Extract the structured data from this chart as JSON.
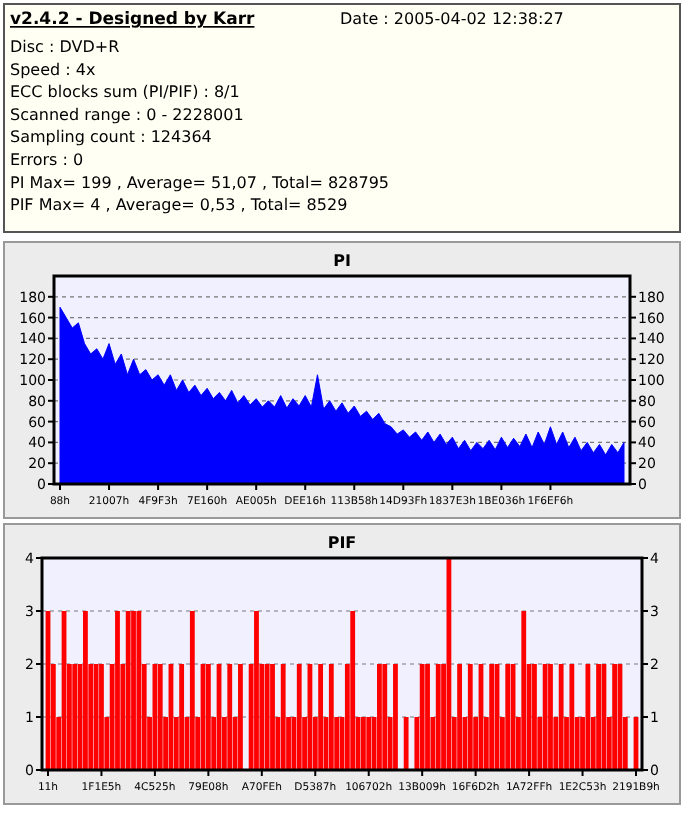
{
  "chart_data": [
    {
      "type": "other",
      "title": "v2.4.2 - Designed by Karr",
      "annotations": [
        "Date : 2005-04-02 12:38:27",
        "Disc : DVD+R",
        "Speed : 4x",
        "ECC blocks sum (PI/PIF) : 8/1",
        "Scanned range : 0 - 2228001",
        "Sampling count : 124364",
        "Errors : 0",
        "PI Max= 199 , Average= 51,07 , Total= 828795",
        "PIF Max= 4 , Average= 0,53 , Total= 8529"
      ]
    },
    {
      "type": "area",
      "title": "PI",
      "color": "#0000ff",
      "grid": "y",
      "categories": [
        "88h",
        null,
        null,
        null,
        null,
        null,
        null,
        null,
        "21007h",
        null,
        null,
        null,
        null,
        null,
        null,
        null,
        "4F9F3h",
        null,
        null,
        null,
        null,
        null,
        null,
        null,
        "7E160h",
        null,
        null,
        null,
        null,
        null,
        null,
        null,
        "AE005h",
        null,
        null,
        null,
        null,
        null,
        null,
        null,
        "DEE16h",
        null,
        null,
        null,
        null,
        null,
        null,
        null,
        "113B58h",
        null,
        null,
        null,
        null,
        null,
        null,
        null,
        "14D93Fh",
        null,
        null,
        null,
        null,
        null,
        null,
        null,
        "1837E3h",
        null,
        null,
        null,
        null,
        null,
        null,
        null,
        "1BE036h",
        null,
        null,
        null,
        null,
        null,
        null,
        null,
        "1F6EF6h",
        null,
        null,
        null,
        null,
        null,
        null,
        null,
        null,
        null,
        null,
        null,
        null
      ],
      "values": [
        170,
        160,
        150,
        155,
        135,
        125,
        130,
        120,
        135,
        115,
        125,
        105,
        120,
        105,
        110,
        100,
        105,
        95,
        105,
        90,
        100,
        88,
        95,
        85,
        92,
        82,
        88,
        80,
        90,
        78,
        85,
        76,
        82,
        74,
        80,
        74,
        85,
        73,
        82,
        75,
        85,
        74,
        105,
        72,
        80,
        70,
        78,
        68,
        75,
        65,
        70,
        62,
        68,
        58,
        55,
        48,
        52,
        45,
        50,
        42,
        50,
        40,
        48,
        38,
        45,
        34,
        42,
        32,
        40,
        34,
        42,
        33,
        45,
        35,
        44,
        36,
        48,
        35,
        50,
        38,
        55,
        38,
        50,
        35,
        45,
        32,
        40,
        30,
        38,
        28,
        38,
        30,
        40
      ],
      "ylim": [
        0,
        200
      ],
      "yticks": [
        0,
        20,
        40,
        60,
        80,
        100,
        120,
        140,
        160,
        180
      ],
      "y2lim": [
        0,
        200
      ],
      "y2ticks": [
        0,
        20,
        40,
        60,
        80,
        100,
        120,
        140,
        160,
        180
      ]
    },
    {
      "type": "bar",
      "title": "PIF",
      "color": "#ff0000",
      "grid": "y",
      "categories": [
        "11h",
        null,
        null,
        null,
        null,
        null,
        null,
        null,
        null,
        null,
        "1F1E5h",
        null,
        null,
        null,
        null,
        null,
        null,
        null,
        null,
        null,
        "4C525h",
        null,
        null,
        null,
        null,
        null,
        null,
        null,
        null,
        null,
        "79E08h",
        null,
        null,
        null,
        null,
        null,
        null,
        null,
        null,
        null,
        "A70FEh",
        null,
        null,
        null,
        null,
        null,
        null,
        null,
        null,
        null,
        "D5387h",
        null,
        null,
        null,
        null,
        null,
        null,
        null,
        null,
        null,
        "106702h",
        null,
        null,
        null,
        null,
        null,
        null,
        null,
        null,
        null,
        "13B009h",
        null,
        null,
        null,
        null,
        null,
        null,
        null,
        null,
        null,
        "16F6D2h",
        null,
        null,
        null,
        null,
        null,
        null,
        null,
        null,
        null,
        "1A72FFh",
        null,
        null,
        null,
        null,
        null,
        null,
        null,
        null,
        null,
        "1E2C53h",
        null,
        null,
        null,
        null,
        null,
        null,
        null,
        null,
        null,
        "2191B9h"
      ],
      "values": [
        3,
        2,
        1,
        3,
        2,
        2,
        2,
        3,
        2,
        2,
        2,
        1,
        2,
        3,
        2,
        3,
        3,
        3,
        2,
        1,
        2,
        2,
        1,
        2,
        1,
        2,
        1,
        3,
        1,
        2,
        2,
        1,
        2,
        1,
        2,
        1,
        2,
        0,
        2,
        3,
        2,
        2,
        2,
        1,
        2,
        1,
        1,
        2,
        1,
        2,
        1,
        2,
        1,
        2,
        1,
        1,
        2,
        3,
        1,
        1,
        1,
        1,
        2,
        2,
        1,
        2,
        0,
        1,
        0,
        1,
        2,
        2,
        1,
        2,
        2,
        4,
        1,
        2,
        1,
        2,
        1,
        2,
        1,
        2,
        2,
        1,
        2,
        2,
        1,
        3,
        2,
        2,
        1,
        2,
        2,
        1,
        2,
        1,
        2,
        1,
        1,
        2,
        1,
        2,
        2,
        1,
        2,
        2,
        1,
        0,
        1
      ],
      "ylim": [
        0,
        4
      ],
      "yticks": [
        0,
        1,
        2,
        3,
        4
      ],
      "y2lim": [
        0,
        4
      ],
      "y2ticks": [
        0,
        1,
        2,
        3,
        4
      ]
    }
  ]
}
